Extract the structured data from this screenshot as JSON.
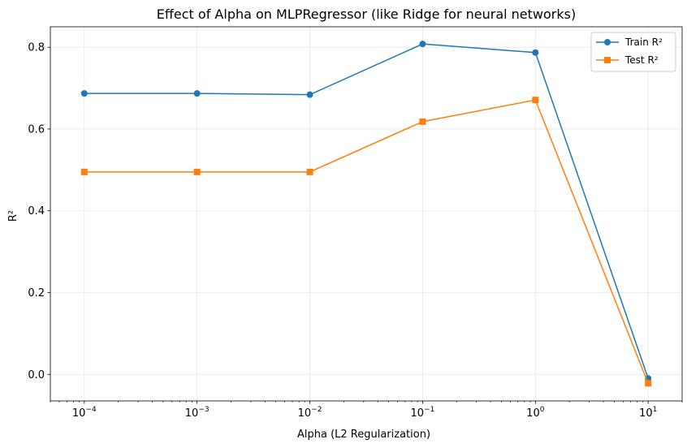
{
  "chart_data": {
    "type": "line",
    "title": "Effect of Alpha on MLPRegressor (like Ridge for neural networks)",
    "xlabel": "Alpha (L2 Regularization)",
    "ylabel": "R²",
    "xscale": "log",
    "x": [
      0.0001,
      0.001,
      0.01,
      0.1,
      1,
      10
    ],
    "xlim": [
      5e-05,
      20
    ],
    "ylim": [
      -0.065,
      0.85
    ],
    "xticks": [
      {
        "value": 0.0001,
        "base": "10",
        "exp": "−4"
      },
      {
        "value": 0.001,
        "base": "10",
        "exp": "−3"
      },
      {
        "value": 0.01,
        "base": "10",
        "exp": "−2"
      },
      {
        "value": 0.1,
        "base": "10",
        "exp": "−1"
      },
      {
        "value": 1,
        "base": "10",
        "exp": "0"
      },
      {
        "value": 10,
        "base": "10",
        "exp": "1"
      }
    ],
    "yticks": [
      {
        "value": 0.0,
        "label": "0.0"
      },
      {
        "value": 0.2,
        "label": "0.2"
      },
      {
        "value": 0.4,
        "label": "0.4"
      },
      {
        "value": 0.6,
        "label": "0.6"
      },
      {
        "value": 0.8,
        "label": "0.8"
      }
    ],
    "grid": true,
    "legend_position": "top-right",
    "series": [
      {
        "name": "Train R²",
        "color": "#1f77b4",
        "marker": "circle",
        "values": [
          0.687,
          0.687,
          0.684,
          0.808,
          0.787,
          -0.01
        ]
      },
      {
        "name": "Test R²",
        "color": "#ff7f0e",
        "marker": "square",
        "values": [
          0.495,
          0.495,
          0.495,
          0.618,
          0.671,
          -0.022
        ]
      }
    ]
  }
}
